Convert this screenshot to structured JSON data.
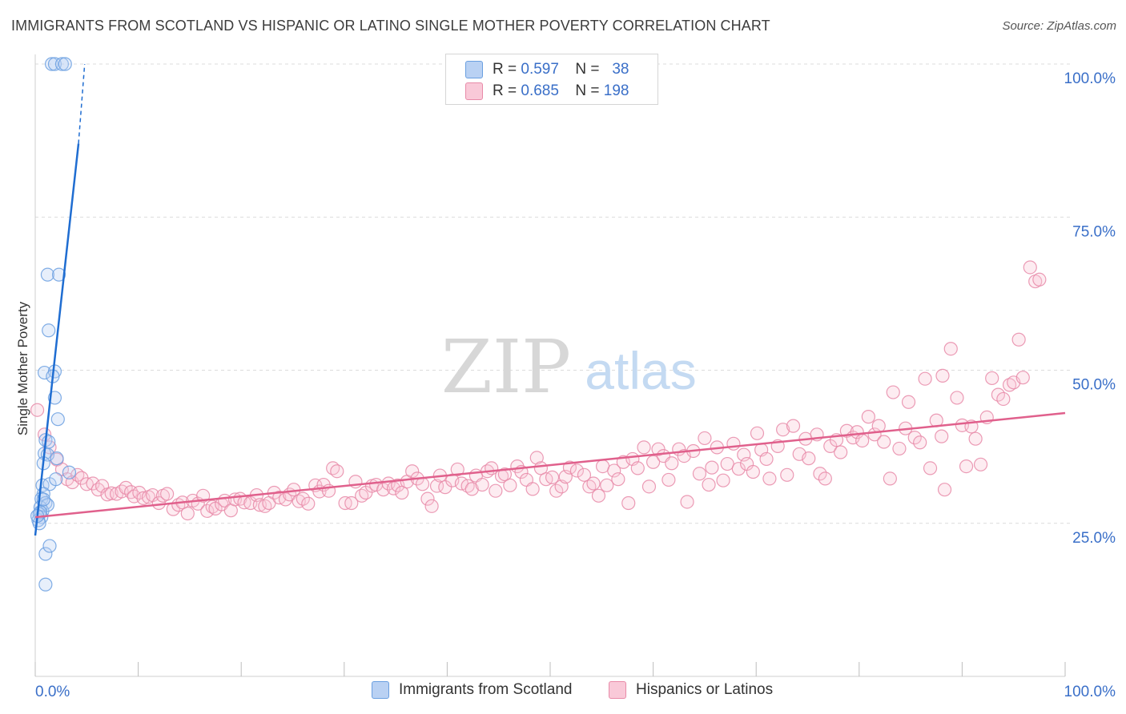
{
  "title": "IMMIGRANTS FROM SCOTLAND VS HISPANIC OR LATINO SINGLE MOTHER POVERTY CORRELATION CHART",
  "source": "Source: ZipAtlas.com",
  "watermark": {
    "zip": "ZIP",
    "atlas": "atlas"
  },
  "colors": {
    "blue": "#6a9fe0",
    "blue_fill": "#b9d1f3",
    "blue_line": "#1f6dd1",
    "pink": "#e88aa8",
    "pink_fill": "#f9c9d8",
    "pink_line": "#e0608c",
    "tick_text": "#3a6fc8"
  },
  "stats": [
    {
      "r_label": "R =",
      "r_value": "0.597",
      "n_label": "N =",
      "n_value": "38"
    },
    {
      "r_label": "R =",
      "r_value": "0.685",
      "n_label": "N =",
      "n_value": "198"
    }
  ],
  "legend": [
    {
      "label": "Immigrants from Scotland"
    },
    {
      "label": "Hispanics or Latinos"
    }
  ],
  "chart_data": {
    "type": "scatter",
    "title": "IMMIGRANTS FROM SCOTLAND VS HISPANIC OR LATINO SINGLE MOTHER POVERTY CORRELATION CHART",
    "xlabel": "",
    "ylabel": "Single Mother Poverty",
    "xlim": [
      0,
      100
    ],
    "ylim": [
      0,
      100
    ],
    "x_tick_labels": [
      "0.0%",
      "100.0%"
    ],
    "y_ticks": [
      25,
      50,
      75,
      100
    ],
    "y_tick_labels": [
      "25.0%",
      "50.0%",
      "75.0%",
      "100.0%"
    ],
    "grid": true,
    "legend_position": "bottom",
    "series": [
      {
        "name": "Immigrants from Scotland",
        "r": 0.597,
        "n": 38,
        "trend": {
          "x0": 0,
          "y0": 23,
          "x1": 4.2,
          "y1": 87,
          "dashed_to": [
            4.8,
            100
          ]
        },
        "points": [
          [
            1.6,
            100
          ],
          [
            1.9,
            100
          ],
          [
            2.6,
            100
          ],
          [
            2.9,
            100
          ],
          [
            1.2,
            65.6
          ],
          [
            2.3,
            65.6
          ],
          [
            1.3,
            56.5
          ],
          [
            0.9,
            49.6
          ],
          [
            1.9,
            49.8
          ],
          [
            1.7,
            49.0
          ],
          [
            1.9,
            45.5
          ],
          [
            2.2,
            42.0
          ],
          [
            1.0,
            38.6
          ],
          [
            1.3,
            38.3
          ],
          [
            0.9,
            36.4
          ],
          [
            1.2,
            36.2
          ],
          [
            2.1,
            35.6
          ],
          [
            0.8,
            34.8
          ],
          [
            3.3,
            33.3
          ],
          [
            0.7,
            31.2
          ],
          [
            1.4,
            31.4
          ],
          [
            2.0,
            32.2
          ],
          [
            0.8,
            29.8
          ],
          [
            0.6,
            29.0
          ],
          [
            1.0,
            28.3
          ],
          [
            0.5,
            27.6
          ],
          [
            0.7,
            27.0
          ],
          [
            1.2,
            28.0
          ],
          [
            0.4,
            26.5
          ],
          [
            0.6,
            26.0
          ],
          [
            0.3,
            25.5
          ],
          [
            0.4,
            25.0
          ],
          [
            0.5,
            26.8
          ],
          [
            0.8,
            28.9
          ],
          [
            1.0,
            20.0
          ],
          [
            1.4,
            21.3
          ],
          [
            1.0,
            15.0
          ],
          [
            0.2,
            26.2
          ]
        ]
      },
      {
        "name": "Hispanics or Latinos",
        "r": 0.685,
        "n": 198,
        "trend": {
          "x0": 0,
          "y0": 26.0,
          "x1": 100,
          "y1": 43.0
        },
        "points": [
          [
            0.2,
            43.5
          ],
          [
            0.9,
            39.5
          ],
          [
            1.4,
            37.4
          ],
          [
            2.1,
            35.4
          ],
          [
            2.6,
            33.8
          ],
          [
            3.1,
            32.2
          ],
          [
            3.6,
            31.7
          ],
          [
            4.1,
            32.9
          ],
          [
            4.5,
            32.4
          ],
          [
            5.0,
            31.4
          ],
          [
            5.6,
            31.5
          ],
          [
            6.1,
            30.5
          ],
          [
            6.5,
            31.1
          ],
          [
            7.0,
            29.7
          ],
          [
            7.4,
            29.9
          ],
          [
            7.9,
            29.8
          ],
          [
            8.4,
            30.2
          ],
          [
            8.8,
            30.8
          ],
          [
            9.3,
            30.1
          ],
          [
            9.6,
            29.4
          ],
          [
            10.1,
            30.0
          ],
          [
            10.5,
            29.1
          ],
          [
            11.0,
            29.3
          ],
          [
            11.4,
            29.6
          ],
          [
            12.0,
            28.3
          ],
          [
            12.4,
            29.5
          ],
          [
            12.8,
            29.8
          ],
          [
            13.4,
            27.3
          ],
          [
            13.9,
            28.0
          ],
          [
            14.3,
            28.4
          ],
          [
            14.8,
            26.6
          ],
          [
            15.3,
            28.7
          ],
          [
            15.8,
            28.2
          ],
          [
            16.3,
            29.5
          ],
          [
            16.7,
            27.0
          ],
          [
            17.2,
            27.7
          ],
          [
            17.5,
            27.4
          ],
          [
            18.1,
            28.1
          ],
          [
            18.4,
            28.7
          ],
          [
            19.0,
            27.1
          ],
          [
            19.4,
            28.9
          ],
          [
            19.9,
            29.0
          ],
          [
            20.3,
            28.4
          ],
          [
            20.9,
            28.3
          ],
          [
            21.5,
            29.6
          ],
          [
            21.8,
            28.0
          ],
          [
            22.3,
            27.8
          ],
          [
            22.7,
            28.3
          ],
          [
            23.2,
            30.0
          ],
          [
            23.7,
            29.2
          ],
          [
            24.3,
            28.9
          ],
          [
            24.7,
            29.7
          ],
          [
            25.1,
            30.5
          ],
          [
            25.6,
            28.6
          ],
          [
            26.0,
            29.0
          ],
          [
            26.5,
            28.2
          ],
          [
            27.2,
            31.2
          ],
          [
            27.6,
            30.2
          ],
          [
            28.0,
            31.3
          ],
          [
            28.5,
            30.3
          ],
          [
            28.9,
            34.0
          ],
          [
            29.3,
            33.5
          ],
          [
            30.1,
            28.3
          ],
          [
            30.7,
            28.3
          ],
          [
            31.1,
            31.8
          ],
          [
            31.7,
            29.5
          ],
          [
            32.1,
            30.0
          ],
          [
            32.7,
            31.1
          ],
          [
            33.1,
            31.3
          ],
          [
            33.8,
            30.5
          ],
          [
            34.3,
            31.5
          ],
          [
            34.8,
            30.7
          ],
          [
            35.2,
            31.2
          ],
          [
            35.6,
            30.0
          ],
          [
            36.1,
            31.8
          ],
          [
            36.6,
            33.5
          ],
          [
            37.1,
            32.3
          ],
          [
            37.6,
            31.4
          ],
          [
            38.1,
            29.0
          ],
          [
            38.5,
            27.8
          ],
          [
            39.0,
            31.1
          ],
          [
            39.3,
            32.8
          ],
          [
            39.8,
            30.9
          ],
          [
            40.5,
            32.0
          ],
          [
            41.0,
            33.8
          ],
          [
            41.4,
            31.5
          ],
          [
            42.0,
            31.1
          ],
          [
            42.4,
            30.6
          ],
          [
            42.8,
            32.8
          ],
          [
            43.4,
            31.3
          ],
          [
            43.9,
            33.5
          ],
          [
            44.3,
            34.0
          ],
          [
            44.7,
            30.3
          ],
          [
            45.3,
            32.7
          ],
          [
            45.6,
            33.0
          ],
          [
            46.1,
            31.2
          ],
          [
            46.8,
            34.3
          ],
          [
            47.2,
            33.4
          ],
          [
            47.7,
            32.1
          ],
          [
            48.3,
            30.6
          ],
          [
            48.7,
            35.7
          ],
          [
            49.1,
            34.0
          ],
          [
            49.6,
            32.2
          ],
          [
            50.2,
            32.5
          ],
          [
            50.6,
            30.3
          ],
          [
            51.1,
            31.0
          ],
          [
            51.5,
            32.6
          ],
          [
            51.9,
            34.1
          ],
          [
            52.6,
            33.6
          ],
          [
            53.3,
            32.9
          ],
          [
            53.8,
            31.0
          ],
          [
            54.2,
            31.5
          ],
          [
            54.7,
            29.5
          ],
          [
            55.1,
            34.3
          ],
          [
            55.5,
            31.2
          ],
          [
            56.2,
            33.6
          ],
          [
            56.6,
            32.2
          ],
          [
            57.1,
            35.0
          ],
          [
            57.6,
            28.3
          ],
          [
            58.0,
            35.5
          ],
          [
            58.5,
            34.0
          ],
          [
            59.1,
            37.4
          ],
          [
            59.6,
            31.0
          ],
          [
            60.0,
            35.0
          ],
          [
            60.5,
            37.1
          ],
          [
            61.0,
            36.0
          ],
          [
            61.5,
            32.1
          ],
          [
            61.8,
            34.8
          ],
          [
            62.5,
            37.1
          ],
          [
            63.0,
            36.0
          ],
          [
            63.3,
            28.5
          ],
          [
            63.9,
            36.8
          ],
          [
            64.5,
            33.1
          ],
          [
            65.0,
            38.9
          ],
          [
            65.4,
            31.3
          ],
          [
            65.7,
            34.1
          ],
          [
            66.2,
            37.4
          ],
          [
            66.8,
            32.0
          ],
          [
            67.2,
            34.7
          ],
          [
            67.8,
            38.0
          ],
          [
            68.3,
            33.9
          ],
          [
            68.8,
            36.2
          ],
          [
            69.1,
            34.7
          ],
          [
            69.7,
            33.4
          ],
          [
            70.1,
            39.7
          ],
          [
            70.5,
            37.0
          ],
          [
            71.0,
            35.5
          ],
          [
            71.3,
            32.3
          ],
          [
            72.1,
            37.6
          ],
          [
            72.6,
            40.3
          ],
          [
            73.0,
            32.9
          ],
          [
            73.6,
            40.9
          ],
          [
            74.2,
            36.3
          ],
          [
            74.8,
            38.8
          ],
          [
            75.1,
            35.6
          ],
          [
            75.9,
            39.5
          ],
          [
            76.2,
            33.1
          ],
          [
            76.7,
            32.3
          ],
          [
            77.2,
            37.6
          ],
          [
            77.8,
            38.6
          ],
          [
            78.2,
            36.6
          ],
          [
            78.8,
            40.1
          ],
          [
            79.4,
            39.0
          ],
          [
            79.8,
            39.9
          ],
          [
            80.3,
            38.5
          ],
          [
            80.9,
            42.4
          ],
          [
            81.5,
            39.5
          ],
          [
            81.9,
            40.9
          ],
          [
            82.4,
            38.3
          ],
          [
            83.0,
            32.3
          ],
          [
            83.3,
            46.4
          ],
          [
            83.9,
            37.2
          ],
          [
            84.5,
            40.5
          ],
          [
            84.8,
            44.8
          ],
          [
            85.4,
            39.0
          ],
          [
            85.9,
            38.2
          ],
          [
            86.4,
            48.6
          ],
          [
            86.9,
            34.0
          ],
          [
            87.5,
            41.8
          ],
          [
            88.0,
            39.2
          ],
          [
            88.3,
            30.5
          ],
          [
            88.9,
            53.5
          ],
          [
            89.5,
            45.5
          ],
          [
            90.0,
            41.0
          ],
          [
            90.4,
            34.3
          ],
          [
            90.9,
            40.8
          ],
          [
            91.3,
            38.8
          ],
          [
            91.8,
            34.6
          ],
          [
            92.4,
            42.3
          ],
          [
            92.9,
            48.7
          ],
          [
            93.5,
            46.0
          ],
          [
            94.0,
            45.3
          ],
          [
            94.6,
            47.6
          ],
          [
            95.0,
            48.0
          ],
          [
            95.5,
            55.0
          ],
          [
            95.9,
            48.8
          ],
          [
            96.6,
            66.8
          ],
          [
            97.1,
            64.5
          ],
          [
            97.5,
            64.8
          ],
          [
            88.1,
            49.1
          ]
        ]
      }
    ]
  }
}
